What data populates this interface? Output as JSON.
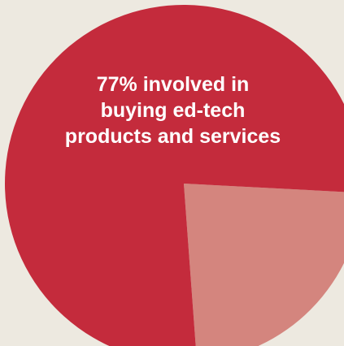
{
  "background_color": "#ede9e0",
  "chart_data": {
    "type": "pie",
    "title": "",
    "slices": [
      {
        "label": "77% involved in\nbuying ed-tech\nproducts and services",
        "value": 77,
        "color": "#c42b3c"
      },
      {
        "label": "",
        "value": 23,
        "color": "#d4857e"
      }
    ],
    "legend": "none"
  }
}
